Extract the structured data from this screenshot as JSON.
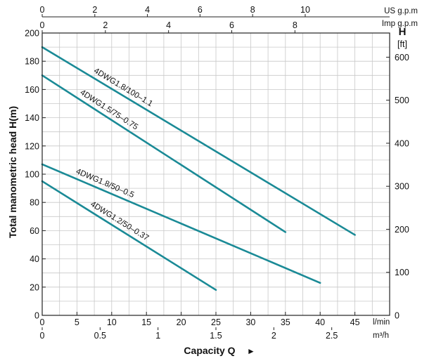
{
  "chart_data": {
    "type": "line",
    "ylabel": "Total manometric head H(m)",
    "xlabel": "Capacity Q",
    "xlabel_arrow": "►",
    "right_axis_label": "H",
    "right_axis_unit": "[ft]",
    "unit_lmin": "l/min",
    "unit_m3h": "m³/h",
    "unit_us": "US g.p.m",
    "unit_imp": "Imp g.p.m",
    "xlim": [
      0,
      50
    ],
    "ylim": [
      0,
      200
    ],
    "grid": true,
    "axes": {
      "lmin_ticks": [
        "0",
        "5",
        "10",
        "15",
        "20",
        "25",
        "30",
        "35",
        "40",
        "45"
      ],
      "m3h_ticks": [
        "0",
        "0.5",
        "1",
        "1.5",
        "2",
        "2.5"
      ],
      "us_ticks": [
        "0",
        "2",
        "4",
        "6",
        "8",
        "10"
      ],
      "imp_ticks": [
        "0",
        "2",
        "4",
        "6",
        "8"
      ],
      "left_ticks": [
        "0",
        "20",
        "40",
        "60",
        "80",
        "100",
        "120",
        "140",
        "160",
        "180",
        "200"
      ],
      "right_ticks": [
        "0",
        "100",
        "200",
        "300",
        "400",
        "500",
        "600"
      ]
    },
    "series": [
      {
        "name": "4DWG1.8/100–1.1",
        "x": [
          0,
          45
        ],
        "y": [
          190,
          57
        ]
      },
      {
        "name": "4DWG1.5/75–0.75",
        "x": [
          0,
          35
        ],
        "y": [
          170,
          59
        ]
      },
      {
        "name": "4DWG1.8/50–0.5",
        "x": [
          0,
          40
        ],
        "y": [
          107,
          23
        ]
      },
      {
        "name": "4DWG1.2/50–0.37",
        "x": [
          0,
          25
        ],
        "y": [
          95,
          18
        ]
      }
    ],
    "line_color": "#1a8a96",
    "grid_color": "#c8c8c8"
  }
}
